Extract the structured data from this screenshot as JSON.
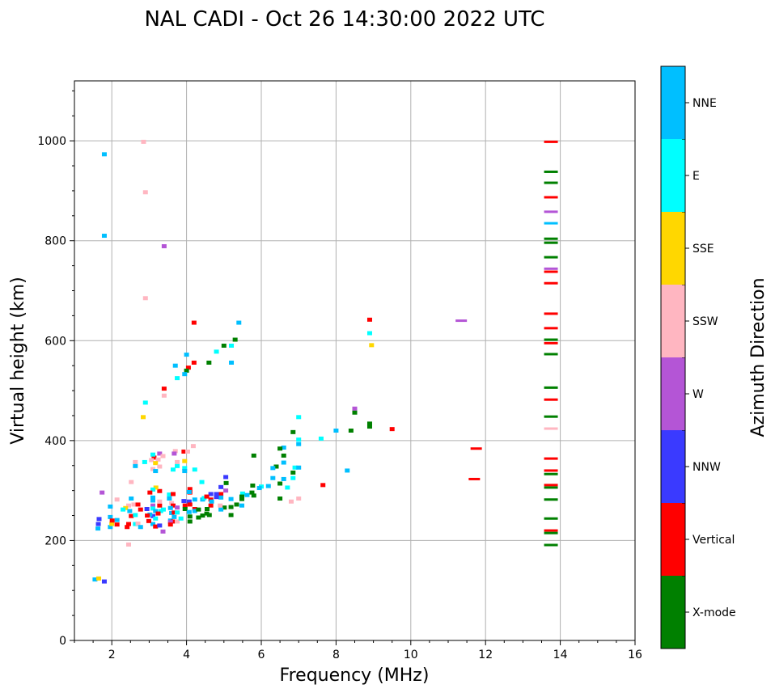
{
  "chart_data": {
    "type": "scatter",
    "title": "NAL CADI - Oct 26 14:30:00 2022 UTC",
    "xlabel": "Frequency (MHz)",
    "ylabel": "Virtual height (km)",
    "xlim": [
      1,
      16
    ],
    "ylim": [
      0,
      1120
    ],
    "xticks": [
      2,
      4,
      6,
      8,
      10,
      12,
      14,
      16
    ],
    "yticks": [
      0,
      200,
      400,
      600,
      800,
      1000
    ],
    "grid": true,
    "colorbar": {
      "label": "Azimuth Direction",
      "categories": [
        "X-mode",
        "Vertical",
        "NNW",
        "W",
        "SSW",
        "SSE",
        "E",
        "NNE"
      ],
      "colors": [
        "#008000",
        "#ff0000",
        "#3a3aff",
        "#b455d6",
        "#ffb6c1",
        "#ffd700",
        "#00ffff",
        "#00bfff"
      ]
    },
    "point_fields": [
      "frequency_mhz",
      "height_km",
      "category_index"
    ],
    "points": [
      [
        13.75,
        998,
        1
      ],
      [
        13.75,
        938,
        0
      ],
      [
        13.75,
        916,
        0
      ],
      [
        13.75,
        887,
        1
      ],
      [
        13.75,
        858,
        3
      ],
      [
        13.75,
        835,
        7
      ],
      [
        13.75,
        804,
        0
      ],
      [
        13.75,
        796,
        0
      ],
      [
        13.75,
        767,
        0
      ],
      [
        13.75,
        744,
        3
      ],
      [
        13.75,
        738,
        1
      ],
      [
        13.75,
        715,
        1
      ],
      [
        13.75,
        654,
        1
      ],
      [
        13.75,
        625,
        1
      ],
      [
        13.75,
        602,
        0
      ],
      [
        13.75,
        595,
        1
      ],
      [
        13.75,
        573,
        0
      ],
      [
        13.75,
        506,
        0
      ],
      [
        13.75,
        482,
        1
      ],
      [
        13.75,
        448,
        0
      ],
      [
        13.75,
        424,
        4
      ],
      [
        13.75,
        364,
        1
      ],
      [
        13.75,
        340,
        1
      ],
      [
        13.75,
        333,
        0
      ],
      [
        13.75,
        311,
        1
      ],
      [
        13.75,
        306,
        0
      ],
      [
        13.75,
        282,
        0
      ],
      [
        13.75,
        244,
        0
      ],
      [
        13.75,
        220,
        1
      ],
      [
        13.75,
        215,
        0
      ],
      [
        13.75,
        191,
        0
      ],
      [
        11.35,
        640,
        3
      ],
      [
        11.75,
        384,
        1
      ],
      [
        11.7,
        323,
        1
      ],
      [
        8.9,
        642,
        1
      ],
      [
        8.9,
        615,
        6
      ],
      [
        8.95,
        591,
        5
      ],
      [
        8.5,
        464,
        3
      ],
      [
        8.5,
        456,
        0
      ],
      [
        8.9,
        434,
        0
      ],
      [
        8.9,
        428,
        0
      ],
      [
        8.4,
        420,
        0
      ],
      [
        9.5,
        423,
        1
      ],
      [
        8.0,
        420,
        7
      ],
      [
        8.3,
        340,
        7
      ],
      [
        7.65,
        311,
        1
      ],
      [
        7.6,
        404,
        6
      ],
      [
        7.0,
        447,
        6
      ],
      [
        6.85,
        417,
        0
      ],
      [
        7.0,
        402,
        6
      ],
      [
        7.0,
        393,
        7
      ],
      [
        6.6,
        386,
        7
      ],
      [
        6.5,
        384,
        0
      ],
      [
        6.6,
        370,
        0
      ],
      [
        6.6,
        356,
        7
      ],
      [
        6.4,
        348,
        0
      ],
      [
        6.9,
        346,
        6
      ],
      [
        7.0,
        346,
        7
      ],
      [
        6.85,
        336,
        0
      ],
      [
        6.85,
        325,
        6
      ],
      [
        6.6,
        323,
        7
      ],
      [
        6.7,
        306,
        6
      ],
      [
        6.5,
        314,
        0
      ],
      [
        6.5,
        284,
        0
      ],
      [
        6.8,
        278,
        4
      ],
      [
        7.0,
        284,
        4
      ],
      [
        6.31,
        345,
        7
      ],
      [
        6.31,
        325,
        7
      ],
      [
        6.19,
        309,
        7
      ],
      [
        5.8,
        370,
        0
      ],
      [
        5.77,
        310,
        0
      ],
      [
        6.0,
        308,
        6
      ],
      [
        5.95,
        305,
        7
      ],
      [
        5.75,
        296,
        0
      ],
      [
        5.8,
        290,
        0
      ],
      [
        5.5,
        294,
        6
      ],
      [
        5.62,
        291,
        7
      ],
      [
        5.48,
        288,
        0
      ],
      [
        5.48,
        283,
        0
      ],
      [
        5.48,
        270,
        7
      ],
      [
        5.34,
        272,
        0
      ],
      [
        5.19,
        283,
        7
      ],
      [
        5.19,
        267,
        0
      ],
      [
        5.19,
        251,
        0
      ],
      [
        5.05,
        327,
        2
      ],
      [
        5.06,
        315,
        0
      ],
      [
        5.05,
        300,
        3
      ],
      [
        5.01,
        266,
        0
      ],
      [
        4.92,
        307,
        2
      ],
      [
        4.92,
        293,
        1
      ],
      [
        4.92,
        286,
        7
      ],
      [
        4.92,
        262,
        7
      ],
      [
        4.9,
        270,
        4
      ],
      [
        4.8,
        293,
        2
      ],
      [
        4.8,
        287,
        2
      ],
      [
        5.4,
        636,
        7
      ],
      [
        5.3,
        602,
        0
      ],
      [
        5.0,
        590,
        0
      ],
      [
        5.2,
        590,
        6
      ],
      [
        5.2,
        556,
        7
      ],
      [
        4.6,
        556,
        0
      ],
      [
        4.8,
        578,
        6
      ],
      [
        4.2,
        636,
        1
      ],
      [
        4.2,
        556,
        1
      ],
      [
        4.0,
        572,
        7
      ],
      [
        3.7,
        550,
        7
      ],
      [
        4.05,
        546,
        1
      ],
      [
        4.0,
        540,
        0
      ],
      [
        3.95,
        533,
        7
      ],
      [
        3.75,
        525,
        6
      ],
      [
        3.4,
        504,
        1
      ],
      [
        3.4,
        490,
        4
      ],
      [
        2.9,
        476,
        6
      ],
      [
        2.84,
        447,
        5
      ],
      [
        3.4,
        789,
        3
      ],
      [
        2.9,
        897,
        4
      ],
      [
        2.9,
        685,
        4
      ],
      [
        2.85,
        998,
        4
      ],
      [
        1.8,
        973,
        7
      ],
      [
        1.8,
        810,
        7
      ],
      [
        3.7,
        379,
        4
      ],
      [
        3.93,
        378,
        1
      ],
      [
        3.67,
        374,
        3
      ],
      [
        4.18,
        389,
        4
      ],
      [
        4.03,
        378,
        4
      ],
      [
        3.13,
        366,
        1
      ],
      [
        3.24,
        362,
        4
      ],
      [
        3.06,
        361,
        4
      ],
      [
        3.17,
        355,
        5
      ],
      [
        3.28,
        348,
        4
      ],
      [
        3.1,
        343,
        4
      ],
      [
        2.88,
        357,
        6
      ],
      [
        2.63,
        357,
        4
      ],
      [
        2.63,
        349,
        7
      ],
      [
        3.75,
        357,
        4
      ],
      [
        3.95,
        359,
        5
      ],
      [
        3.75,
        349,
        6
      ],
      [
        3.64,
        342,
        6
      ],
      [
        3.95,
        345,
        6
      ],
      [
        3.95,
        339,
        7
      ],
      [
        4.22,
        342,
        6
      ],
      [
        3.28,
        374,
        3
      ],
      [
        3.1,
        372,
        6
      ],
      [
        3.37,
        369,
        4
      ],
      [
        2.52,
        317,
        4
      ],
      [
        3.17,
        339,
        7
      ],
      [
        4.41,
        317,
        6
      ],
      [
        1.74,
        296,
        3
      ],
      [
        3.28,
        299,
        1
      ],
      [
        3.18,
        306,
        5
      ],
      [
        3.1,
        302,
        6
      ],
      [
        3.02,
        296,
        1
      ],
      [
        2.14,
        282,
        4
      ],
      [
        2.52,
        284,
        7
      ],
      [
        1.96,
        268,
        7
      ],
      [
        2.45,
        270,
        4
      ],
      [
        2.59,
        272,
        4
      ],
      [
        2.7,
        272,
        1
      ],
      [
        2.77,
        262,
        1
      ],
      [
        2.37,
        265,
        5
      ],
      [
        2.3,
        262,
        6
      ],
      [
        2.48,
        259,
        7
      ],
      [
        2.52,
        249,
        1
      ],
      [
        2.63,
        251,
        6
      ],
      [
        2.14,
        241,
        7
      ],
      [
        2.14,
        232,
        1
      ],
      [
        2.45,
        233,
        1
      ],
      [
        2.41,
        227,
        1
      ],
      [
        2.63,
        233,
        6
      ],
      [
        2.7,
        234,
        4
      ],
      [
        2.77,
        227,
        7
      ],
      [
        1.96,
        247,
        7
      ],
      [
        1.96,
        227,
        7
      ],
      [
        1.66,
        243,
        2
      ],
      [
        1.64,
        233,
        2
      ],
      [
        1.63,
        224,
        7
      ],
      [
        2.0,
        233,
        5
      ],
      [
        2.01,
        240,
        1
      ],
      [
        3.1,
        286,
        7
      ],
      [
        3.1,
        280,
        7
      ],
      [
        3.1,
        270,
        3
      ],
      [
        3.1,
        264,
        6
      ],
      [
        3.17,
        259,
        7
      ],
      [
        3.1,
        249,
        2
      ],
      [
        3.17,
        244,
        6
      ],
      [
        3.1,
        233,
        7
      ],
      [
        3.17,
        228,
        1
      ],
      [
        3.31,
        259,
        6
      ],
      [
        3.24,
        254,
        1
      ],
      [
        3.02,
        252,
        7
      ],
      [
        3.38,
        262,
        6
      ],
      [
        3.28,
        270,
        1
      ],
      [
        3.28,
        278,
        4
      ],
      [
        3.28,
        230,
        2
      ],
      [
        2.95,
        250,
        1
      ],
      [
        2.99,
        239,
        1
      ],
      [
        2.94,
        263,
        2
      ],
      [
        3.37,
        218,
        3
      ],
      [
        3.54,
        292,
        6
      ],
      [
        3.54,
        284,
        7
      ],
      [
        3.64,
        293,
        1
      ],
      [
        3.6,
        275,
        4
      ],
      [
        3.64,
        270,
        1
      ],
      [
        3.75,
        266,
        3
      ],
      [
        3.57,
        265,
        7
      ],
      [
        3.6,
        255,
        7
      ],
      [
        3.67,
        256,
        1
      ],
      [
        3.75,
        256,
        6
      ],
      [
        3.67,
        247,
        7
      ],
      [
        3.57,
        240,
        7
      ],
      [
        3.64,
        238,
        1
      ],
      [
        3.57,
        237,
        3
      ],
      [
        3.57,
        232,
        1
      ],
      [
        3.75,
        238,
        4
      ],
      [
        3.85,
        244,
        6
      ],
      [
        3.93,
        279,
        2
      ],
      [
        3.96,
        270,
        1
      ],
      [
        4.07,
        278,
        2
      ],
      [
        4.09,
        272,
        1
      ],
      [
        4.09,
        296,
        1
      ],
      [
        4.09,
        303,
        1
      ],
      [
        4.07,
        297,
        7
      ],
      [
        3.96,
        263,
        0
      ],
      [
        4.07,
        257,
        7
      ],
      [
        4.09,
        248,
        0
      ],
      [
        4.09,
        238,
        0
      ],
      [
        4.22,
        282,
        7
      ],
      [
        4.22,
        263,
        1
      ],
      [
        4.22,
        259,
        7
      ],
      [
        4.32,
        262,
        0
      ],
      [
        4.32,
        246,
        0
      ],
      [
        4.54,
        254,
        0
      ],
      [
        4.61,
        251,
        0
      ],
      [
        4.43,
        250,
        0
      ],
      [
        4.43,
        282,
        7
      ],
      [
        4.47,
        285,
        6
      ],
      [
        4.65,
        282,
        1
      ],
      [
        4.65,
        270,
        1
      ],
      [
        4.67,
        278,
        7
      ],
      [
        4.65,
        293,
        2
      ],
      [
        4.54,
        288,
        1
      ],
      [
        4.55,
        263,
        0
      ],
      [
        2.45,
        192,
        4
      ],
      [
        1.55,
        122,
        7
      ],
      [
        1.65,
        124,
        5
      ],
      [
        1.8,
        118,
        2
      ]
    ]
  }
}
